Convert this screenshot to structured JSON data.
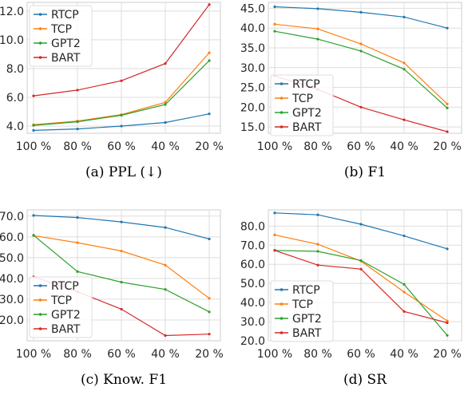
{
  "colors": {
    "RTCP": "#1f77b4",
    "TCP": "#ff7f0e",
    "GPT2": "#2ca02c",
    "BART": "#d62728"
  },
  "chart_data": [
    {
      "id": "a",
      "type": "line",
      "caption": "(a) PPL (↓)",
      "categories": [
        "100 %",
        "80 %",
        "60 %",
        "40 %",
        "20 %"
      ],
      "ylim": [
        3.5,
        12.6
      ],
      "yticks": [
        4.0,
        6.0,
        8.0,
        10.0,
        12.0
      ],
      "ytick_labels": [
        "4.0",
        "6.0",
        "8.0",
        "10.0",
        "12.0"
      ],
      "grid": true,
      "legend": "top-left",
      "series": [
        {
          "name": "RTCP",
          "values": [
            3.7,
            3.8,
            4.0,
            4.25,
            4.85
          ]
        },
        {
          "name": "TCP",
          "values": [
            4.1,
            4.35,
            4.8,
            5.65,
            9.1
          ]
        },
        {
          "name": "GPT2",
          "values": [
            4.05,
            4.3,
            4.75,
            5.5,
            8.55
          ]
        },
        {
          "name": "BART",
          "values": [
            6.1,
            6.5,
            7.15,
            8.35,
            12.45
          ]
        }
      ]
    },
    {
      "id": "b",
      "type": "line",
      "caption": "(b) F1",
      "categories": [
        "100 %",
        "80 %",
        "60 %",
        "40 %",
        "20 %"
      ],
      "ylim": [
        13.4,
        46.5
      ],
      "yticks": [
        15.0,
        20.0,
        25.0,
        30.0,
        35.0,
        40.0,
        45.0
      ],
      "ytick_labels": [
        "15.0",
        "20.0",
        "25.0",
        "30.0",
        "35.0",
        "40.0",
        "45.0"
      ],
      "grid": true,
      "legend": "bottom-left",
      "series": [
        {
          "name": "RTCP",
          "values": [
            45.4,
            44.9,
            44.0,
            42.8,
            40.0
          ]
        },
        {
          "name": "TCP",
          "values": [
            41.0,
            39.8,
            36.0,
            31.2,
            20.8
          ]
        },
        {
          "name": "GPT2",
          "values": [
            39.2,
            37.2,
            34.2,
            29.6,
            19.8
          ]
        },
        {
          "name": "BART",
          "values": [
            27.9,
            24.5,
            20.0,
            16.8,
            13.8
          ]
        }
      ]
    },
    {
      "id": "c",
      "type": "line",
      "caption": "(c) Know. F1",
      "categories": [
        "100 %",
        "80 %",
        "60 %",
        "40 %",
        "20 %"
      ],
      "ylim": [
        10.0,
        73.0
      ],
      "yticks": [
        20.0,
        30.0,
        40.0,
        50.0,
        60.0,
        70.0
      ],
      "ytick_labels": [
        "20.0",
        "30.0",
        "40.0",
        "50.0",
        "60.0",
        "70.0"
      ],
      "grid": true,
      "legend": "bottom-left",
      "series": [
        {
          "name": "RTCP",
          "values": [
            70.3,
            69.3,
            67.2,
            64.5,
            59.0
          ]
        },
        {
          "name": "TCP",
          "values": [
            60.6,
            57.2,
            53.2,
            46.4,
            30.4
          ]
        },
        {
          "name": "GPT2",
          "values": [
            60.8,
            43.3,
            38.2,
            34.7,
            23.9
          ]
        },
        {
          "name": "BART",
          "values": [
            40.8,
            33.6,
            25.2,
            12.5,
            13.2
          ]
        }
      ]
    },
    {
      "id": "d",
      "type": "line",
      "caption": "(d) SR",
      "categories": [
        "100 %",
        "80 %",
        "60 %",
        "40 %",
        "20 %"
      ],
      "ylim": [
        20.0,
        88.5
      ],
      "yticks": [
        20.0,
        30.0,
        40.0,
        50.0,
        60.0,
        70.0,
        80.0
      ],
      "ytick_labels": [
        "20.0",
        "30.0",
        "40.0",
        "50.0",
        "60.0",
        "70.0",
        "80.0"
      ],
      "grid": true,
      "legend": "bottom-left",
      "series": [
        {
          "name": "RTCP",
          "values": [
            86.9,
            85.9,
            81.0,
            74.9,
            68.1
          ]
        },
        {
          "name": "TCP",
          "values": [
            75.4,
            70.5,
            61.7,
            45.5,
            30.4
          ]
        },
        {
          "name": "GPT2",
          "values": [
            67.3,
            66.8,
            62.0,
            49.5,
            22.8
          ]
        },
        {
          "name": "BART",
          "values": [
            67.3,
            59.6,
            57.5,
            35.3,
            29.4
          ]
        }
      ]
    }
  ]
}
